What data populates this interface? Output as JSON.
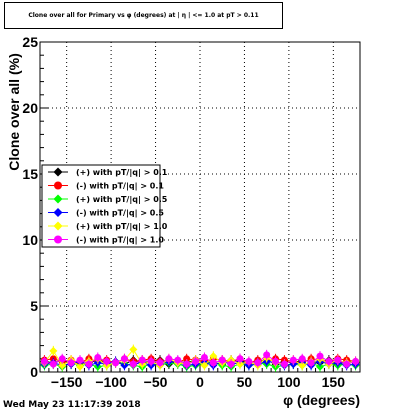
{
  "title": "Clone  over all for Primary vs φ (degrees) at | η | <= 1.0 at pT > 0.11",
  "timestamp": "Wed May 23 11:17:39 2018",
  "colors": {
    "black": "#000000",
    "red": "#ff0000",
    "green": "#00ff00",
    "blue": "#0000ff",
    "yellow": "#ffff00",
    "magenta": "#ff00ff"
  },
  "chart_data": {
    "type": "scatter",
    "title": "Clone  over all for Primary vs φ (degrees) at | η | <= 1.0 at pT > 0.11",
    "xlabel": "φ (degrees)",
    "ylabel": "Clone  over all (%)",
    "xlim": [
      -180,
      180
    ],
    "ylim": [
      0,
      25
    ],
    "xticks": [
      -150,
      -100,
      -50,
      0,
      50,
      100,
      150
    ],
    "xtick_labels": [
      "−150",
      "−100",
      "−50",
      "0",
      "50",
      "100",
      "150"
    ],
    "yticks": [
      0,
      5,
      10,
      15,
      20,
      25
    ],
    "ytick_labels": [
      "0",
      "5",
      "10",
      "15",
      "20",
      "25"
    ],
    "grid": true,
    "legend_position": "left-middle",
    "x": [
      -175,
      -165,
      -155,
      -145,
      -135,
      -125,
      -115,
      -105,
      -95,
      -85,
      -75,
      -65,
      -55,
      -45,
      -35,
      -25,
      -15,
      -5,
      5,
      15,
      25,
      35,
      45,
      55,
      65,
      75,
      85,
      95,
      105,
      115,
      125,
      135,
      145,
      155,
      165,
      175
    ],
    "series": [
      {
        "name": "(+) with pT/|q| > 0.1",
        "color": "#000000",
        "marker": "diamond",
        "values": [
          0.8,
          0.7,
          0.9,
          0.6,
          0.8,
          0.7,
          0.9,
          0.7,
          0.8,
          0.6,
          0.9,
          0.7,
          0.8,
          0.9,
          0.6,
          0.8,
          0.7,
          0.9,
          0.8,
          0.7,
          0.6,
          0.9,
          0.8,
          0.7,
          0.8,
          0.9,
          0.6,
          0.8,
          0.7,
          0.9,
          0.8,
          0.7,
          0.9,
          0.6,
          0.8,
          0.7
        ]
      },
      {
        "name": "(-) with pT/|q| > 0.1",
        "color": "#ff0000",
        "marker": "circle",
        "values": [
          0.9,
          1.0,
          0.8,
          0.9,
          0.7,
          1.0,
          0.8,
          0.9,
          0.7,
          1.0,
          0.8,
          0.9,
          1.0,
          0.8,
          0.9,
          0.7,
          1.0,
          0.9,
          0.8,
          1.0,
          0.9,
          0.8,
          1.0,
          0.7,
          0.9,
          0.8,
          1.0,
          0.9,
          0.8,
          0.7,
          1.0,
          0.9,
          0.8,
          1.0,
          0.9,
          0.8
        ]
      },
      {
        "name": "(+) with pT/|q| > 0.5",
        "color": "#00ff00",
        "marker": "diamond",
        "values": [
          0.5,
          0.6,
          0.4,
          0.7,
          0.5,
          0.6,
          0.4,
          0.5,
          0.7,
          0.6,
          0.5,
          0.4,
          0.6,
          0.5,
          0.7,
          0.6,
          0.4,
          0.5,
          0.6,
          0.7,
          0.5,
          0.4,
          0.6,
          0.5,
          0.7,
          0.6,
          0.4,
          0.5,
          0.6,
          0.5,
          0.7,
          0.4,
          0.6,
          0.5,
          0.6,
          0.5
        ]
      },
      {
        "name": "(-) with pT/|q| > 0.5",
        "color": "#0000ff",
        "marker": "diamond",
        "values": [
          0.6,
          0.7,
          0.5,
          0.6,
          0.8,
          0.5,
          0.7,
          0.6,
          0.8,
          0.5,
          0.6,
          0.7,
          0.5,
          0.6,
          0.8,
          0.7,
          0.5,
          0.6,
          0.7,
          0.5,
          0.8,
          0.6,
          0.7,
          0.5,
          0.6,
          0.8,
          0.7,
          0.5,
          0.6,
          0.7,
          0.5,
          0.8,
          0.6,
          0.7,
          0.5,
          0.6
        ]
      },
      {
        "name": "(+) with pT/|q| > 1.0",
        "color": "#ffff00",
        "marker": "diamond",
        "values": [
          0.7,
          1.6,
          0.5,
          0.9,
          0.4,
          0.8,
          1.0,
          0.5,
          0.7,
          0.9,
          1.7,
          0.6,
          0.8,
          0.5,
          1.0,
          0.7,
          0.6,
          0.9,
          0.5,
          1.2,
          0.7,
          0.9,
          0.6,
          0.8,
          0.5,
          1.1,
          0.7,
          0.6,
          0.9,
          0.5,
          0.8,
          1.0,
          0.6,
          0.9,
          0.7,
          0.8
        ]
      },
      {
        "name": "(-) with pT/|q| > 1.0",
        "color": "#ff00ff",
        "marker": "circle",
        "values": [
          0.8,
          0.6,
          1.0,
          0.7,
          0.9,
          0.6,
          1.1,
          0.8,
          0.7,
          1.0,
          0.6,
          0.9,
          0.8,
          0.7,
          1.0,
          0.9,
          0.6,
          0.8,
          1.1,
          0.7,
          0.9,
          0.6,
          1.0,
          0.8,
          0.7,
          1.3,
          0.8,
          0.6,
          0.9,
          1.0,
          0.7,
          1.2,
          0.8,
          0.9,
          0.6,
          0.8
        ]
      }
    ]
  }
}
